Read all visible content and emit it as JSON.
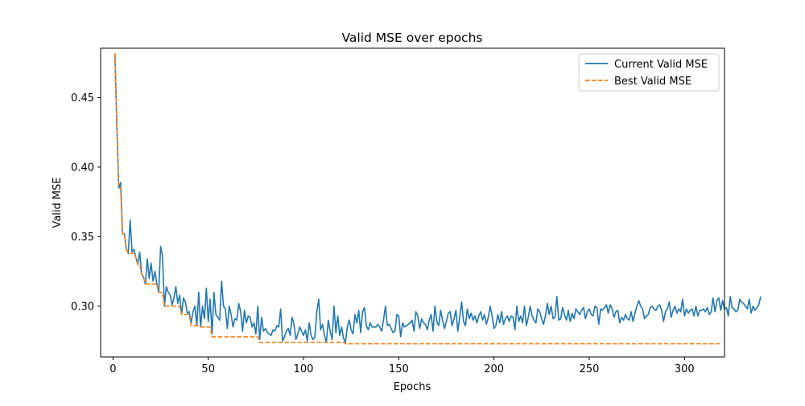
{
  "chart_data": {
    "type": "line",
    "title": "Valid MSE over epochs",
    "xlabel": "Epochs",
    "ylabel": "Valid MSE",
    "xlim": [
      -6.5,
      321
    ],
    "ylim": [
      0.2635,
      0.4855
    ],
    "xticks": [
      0,
      50,
      100,
      150,
      200,
      250,
      300
    ],
    "yticks": [
      0.3,
      0.35,
      0.4,
      0.45
    ],
    "xtick_labels": [
      "0",
      "50",
      "100",
      "150",
      "200",
      "250",
      "300"
    ],
    "ytick_labels": [
      "0.30",
      "0.35",
      "0.40",
      "0.45"
    ],
    "grid": false,
    "legend_position": "top-right",
    "x_start": 1,
    "series": [
      {
        "name": "Current Valid MSE",
        "color": "#1f77b4",
        "style": "solid",
        "values": [
          0.482,
          0.431,
          0.385,
          0.389,
          0.352,
          0.352,
          0.341,
          0.338,
          0.362,
          0.339,
          0.341,
          0.335,
          0.33,
          0.339,
          0.323,
          0.321,
          0.316,
          0.334,
          0.32,
          0.331,
          0.318,
          0.325,
          0.316,
          0.31,
          0.343,
          0.336,
          0.3,
          0.314,
          0.31,
          0.308,
          0.301,
          0.306,
          0.314,
          0.302,
          0.308,
          0.294,
          0.306,
          0.303,
          0.295,
          0.296,
          0.288,
          0.296,
          0.3,
          0.286,
          0.31,
          0.285,
          0.3,
          0.291,
          0.313,
          0.289,
          0.305,
          0.28,
          0.31,
          0.294,
          0.292,
          0.29,
          0.318,
          0.3,
          0.298,
          0.284,
          0.3,
          0.294,
          0.285,
          0.291,
          0.29,
          0.302,
          0.296,
          0.282,
          0.297,
          0.288,
          0.293,
          0.292,
          0.285,
          0.288,
          0.28,
          0.3,
          0.276,
          0.292,
          0.282,
          0.284,
          0.281,
          0.28,
          0.279,
          0.283,
          0.282,
          0.286,
          0.285,
          0.298,
          0.275,
          0.278,
          0.282,
          0.284,
          0.279,
          0.292,
          0.287,
          0.276,
          0.28,
          0.285,
          0.282,
          0.279,
          0.283,
          0.275,
          0.288,
          0.279,
          0.276,
          0.278,
          0.296,
          0.305,
          0.283,
          0.287,
          0.279,
          0.274,
          0.29,
          0.282,
          0.276,
          0.3,
          0.281,
          0.293,
          0.279,
          0.285,
          0.277,
          0.274,
          0.285,
          0.29,
          0.283,
          0.28,
          0.294,
          0.288,
          0.297,
          0.281,
          0.296,
          0.299,
          0.286,
          0.283,
          0.288,
          0.285,
          0.285,
          0.285,
          0.287,
          0.285,
          0.282,
          0.29,
          0.3,
          0.286,
          0.287,
          0.284,
          0.281,
          0.282,
          0.294,
          0.293,
          0.278,
          0.288,
          0.285,
          0.286,
          0.287,
          0.288,
          0.29,
          0.282,
          0.296,
          0.293,
          0.284,
          0.291,
          0.288,
          0.287,
          0.283,
          0.29,
          0.294,
          0.282,
          0.3,
          0.289,
          0.286,
          0.297,
          0.29,
          0.284,
          0.289,
          0.295,
          0.296,
          0.286,
          0.291,
          0.297,
          0.282,
          0.292,
          0.303,
          0.289,
          0.286,
          0.298,
          0.291,
          0.295,
          0.29,
          0.293,
          0.288,
          0.293,
          0.296,
          0.29,
          0.294,
          0.287,
          0.292,
          0.3,
          0.293,
          0.284,
          0.286,
          0.294,
          0.288,
          0.296,
          0.287,
          0.291,
          0.293,
          0.289,
          0.293,
          0.292,
          0.283,
          0.3,
          0.289,
          0.293,
          0.288,
          0.3,
          0.286,
          0.292,
          0.3,
          0.293,
          0.29,
          0.288,
          0.298,
          0.296,
          0.291,
          0.287,
          0.293,
          0.302,
          0.294,
          0.3,
          0.291,
          0.292,
          0.307,
          0.29,
          0.291,
          0.299,
          0.294,
          0.29,
          0.297,
          0.289,
          0.295,
          0.291,
          0.298,
          0.296,
          0.294,
          0.297,
          0.299,
          0.291,
          0.296,
          0.298,
          0.294,
          0.293,
          0.3,
          0.299,
          0.287,
          0.298,
          0.297,
          0.299,
          0.301,
          0.295,
          0.301,
          0.298,
          0.292,
          0.296,
          0.297,
          0.288,
          0.292,
          0.29,
          0.294,
          0.291,
          0.29,
          0.296,
          0.289,
          0.295,
          0.3,
          0.304,
          0.3,
          0.298,
          0.291,
          0.293,
          0.294,
          0.299,
          0.3,
          0.298,
          0.297,
          0.3,
          0.301,
          0.297,
          0.289,
          0.296,
          0.298,
          0.303,
          0.292,
          0.297,
          0.3,
          0.295,
          0.298,
          0.296,
          0.305,
          0.293,
          0.298,
          0.295,
          0.297,
          0.298,
          0.293,
          0.3,
          0.293,
          0.297,
          0.297,
          0.298,
          0.296,
          0.299,
          0.294,
          0.296,
          0.306,
          0.296,
          0.304,
          0.306,
          0.297,
          0.304,
          0.298,
          0.299,
          0.293,
          0.307,
          0.299,
          0.298,
          0.296,
          0.297,
          0.305,
          0.303,
          0.302,
          0.3,
          0.298,
          0.305,
          0.295,
          0.3,
          0.297,
          0.299,
          0.301,
          0.307
        ]
      },
      {
        "name": "Best Valid MSE",
        "color": "#ff7f0e",
        "style": "dashed",
        "values": [
          0.482,
          0.431,
          0.385,
          0.385,
          0.352,
          0.352,
          0.341,
          0.338,
          0.338,
          0.338,
          0.338,
          0.335,
          0.33,
          0.33,
          0.323,
          0.321,
          0.316,
          0.316,
          0.316,
          0.316,
          0.316,
          0.316,
          0.316,
          0.31,
          0.31,
          0.31,
          0.3,
          0.3,
          0.3,
          0.3,
          0.3,
          0.3,
          0.3,
          0.3,
          0.3,
          0.294,
          0.294,
          0.294,
          0.294,
          0.294,
          0.286,
          0.286,
          0.286,
          0.286,
          0.286,
          0.285,
          0.285,
          0.285,
          0.285,
          0.285,
          0.285,
          0.278,
          0.278,
          0.278,
          0.278,
          0.278,
          0.278,
          0.278,
          0.278,
          0.278,
          0.278,
          0.278,
          0.278,
          0.278,
          0.278,
          0.278,
          0.278,
          0.278,
          0.278,
          0.278,
          0.278,
          0.278,
          0.278,
          0.278,
          0.278,
          0.278,
          0.274,
          0.274,
          0.274,
          0.274,
          0.274,
          0.274,
          0.274,
          0.274,
          0.274,
          0.274,
          0.274,
          0.274,
          0.274,
          0.274,
          0.274,
          0.274,
          0.274,
          0.274,
          0.274,
          0.274,
          0.274,
          0.274,
          0.274,
          0.274,
          0.274,
          0.274,
          0.274,
          0.274,
          0.274,
          0.274,
          0.274,
          0.274,
          0.274,
          0.274,
          0.274,
          0.274,
          0.274,
          0.274,
          0.274,
          0.274,
          0.274,
          0.274,
          0.274,
          0.274,
          0.274,
          0.273,
          0.273,
          0.273,
          0.273,
          0.273,
          0.273,
          0.273,
          0.273,
          0.273,
          0.273,
          0.273,
          0.273,
          0.273,
          0.273,
          0.273,
          0.273,
          0.273,
          0.273,
          0.273,
          0.273,
          0.273,
          0.273,
          0.273,
          0.273,
          0.273,
          0.273,
          0.273,
          0.273,
          0.273,
          0.273,
          0.273,
          0.273,
          0.273,
          0.273,
          0.273,
          0.273,
          0.273,
          0.273,
          0.273,
          0.273,
          0.273,
          0.273,
          0.273,
          0.273,
          0.273,
          0.273,
          0.273,
          0.273,
          0.273,
          0.273,
          0.273,
          0.273,
          0.273,
          0.273,
          0.273,
          0.273,
          0.273,
          0.273,
          0.273,
          0.273,
          0.273,
          0.273,
          0.273,
          0.273,
          0.273,
          0.273,
          0.273,
          0.273,
          0.273,
          0.273,
          0.273,
          0.273,
          0.273,
          0.273,
          0.273,
          0.273,
          0.273,
          0.273,
          0.273,
          0.273,
          0.273,
          0.273,
          0.273,
          0.273,
          0.273,
          0.273,
          0.273,
          0.273,
          0.273,
          0.273,
          0.273,
          0.273,
          0.273,
          0.273,
          0.273,
          0.273,
          0.273,
          0.273,
          0.273,
          0.273,
          0.273,
          0.273,
          0.273,
          0.273,
          0.273,
          0.273,
          0.273,
          0.273,
          0.273,
          0.273,
          0.273,
          0.273,
          0.273,
          0.273,
          0.273,
          0.273,
          0.273,
          0.273,
          0.273,
          0.273,
          0.273,
          0.273,
          0.273,
          0.273,
          0.273,
          0.273,
          0.273,
          0.273,
          0.273,
          0.273,
          0.273,
          0.273,
          0.273,
          0.273,
          0.273,
          0.273,
          0.273,
          0.273,
          0.273,
          0.273,
          0.273,
          0.273,
          0.273,
          0.273,
          0.273,
          0.273,
          0.273,
          0.273,
          0.273,
          0.273,
          0.273,
          0.273,
          0.273,
          0.273,
          0.273,
          0.273,
          0.273,
          0.273,
          0.273,
          0.273,
          0.273,
          0.273,
          0.273,
          0.273,
          0.273,
          0.273,
          0.273,
          0.273,
          0.273,
          0.273,
          0.273,
          0.273,
          0.273,
          0.273,
          0.273,
          0.273,
          0.273,
          0.273,
          0.273,
          0.273,
          0.273,
          0.273,
          0.273,
          0.273,
          0.273,
          0.273,
          0.273,
          0.273,
          0.273,
          0.273,
          0.273,
          0.273,
          0.273,
          0.273,
          0.273,
          0.273,
          0.273,
          0.273
        ]
      }
    ]
  }
}
